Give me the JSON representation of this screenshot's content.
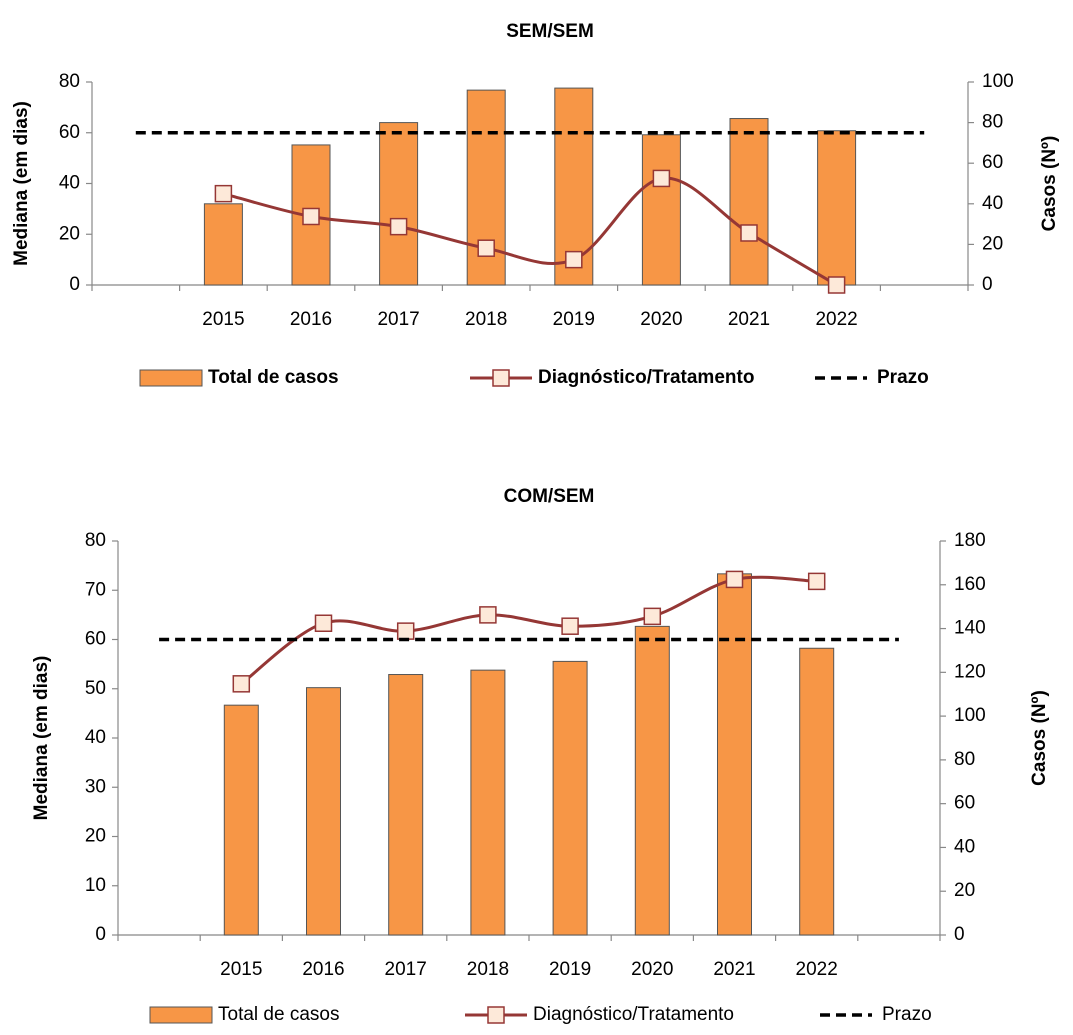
{
  "chart_data": [
    {
      "type": "bar",
      "title": "SEM/SEM",
      "y_label": "Mediana (em dias)",
      "y2_label": "Casos (Nº)",
      "categories": [
        null,
        "2015",
        "2016",
        "2017",
        "2018",
        "2019",
        "2020",
        "2021",
        "2022",
        null
      ],
      "ylim": [
        0,
        80
      ],
      "yticks": [
        0,
        20,
        40,
        60,
        80
      ],
      "y2lim": [
        0,
        100
      ],
      "y2ticks": [
        0,
        20,
        40,
        60,
        80,
        100
      ],
      "series": [
        {
          "name": "Total de casos",
          "type": "bar",
          "axis": "y2",
          "color": "#f79646",
          "values": [
            null,
            40,
            69,
            80,
            96,
            97,
            74,
            82,
            76,
            null
          ]
        },
        {
          "name": "Diagnóstico/Tratamento",
          "type": "line",
          "smooth": true,
          "color": "#953735",
          "marker_color": "#fde9d9",
          "values": [
            null,
            36,
            27,
            23,
            14.5,
            10,
            42,
            20.5,
            0,
            null
          ]
        },
        {
          "name": "Prazo",
          "type": "dashed",
          "color": "#000000",
          "values": [
            60,
            60,
            60,
            60,
            60,
            60,
            60,
            60,
            60,
            60
          ]
        }
      ]
    },
    {
      "type": "bar",
      "title": "COM/SEM",
      "y_label": "Mediana (em dias)",
      "y2_label": "Casos (Nº)",
      "categories": [
        null,
        "2015",
        "2016",
        "2017",
        "2018",
        "2019",
        "2020",
        "2021",
        "2022",
        null
      ],
      "ylim": [
        0,
        80
      ],
      "yticks": [
        0,
        10,
        20,
        30,
        40,
        50,
        60,
        70,
        80
      ],
      "y2lim": [
        0,
        180
      ],
      "y2ticks": [
        0,
        20,
        40,
        60,
        80,
        100,
        120,
        140,
        160,
        180
      ],
      "series": [
        {
          "name": "Total de casos",
          "type": "bar",
          "axis": "y2",
          "color": "#f79646",
          "values": [
            null,
            105,
            113,
            119,
            121,
            125,
            141,
            165,
            131,
            null
          ]
        },
        {
          "name": "Diagnóstico/Tratamento",
          "type": "line",
          "smooth": true,
          "color": "#953735",
          "marker_color": "#fde9d9",
          "values": [
            null,
            51,
            63.3,
            61.7,
            65,
            62.7,
            64.7,
            72.2,
            71.8,
            null
          ]
        },
        {
          "name": "Prazo",
          "type": "dashed",
          "color": "#000000",
          "values": [
            60,
            60,
            60,
            60,
            60,
            60,
            60,
            60,
            60,
            60
          ]
        }
      ]
    }
  ]
}
